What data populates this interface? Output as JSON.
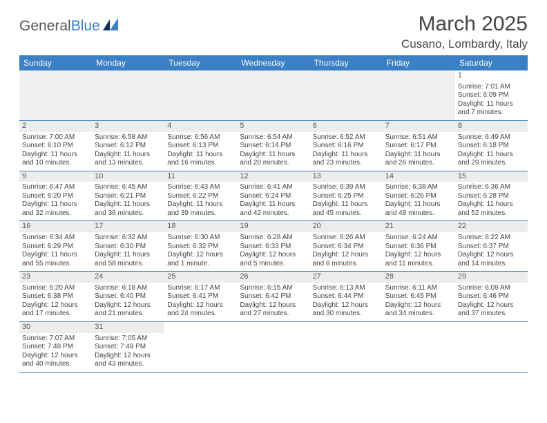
{
  "logo": {
    "word1": "General",
    "word2": "Blue"
  },
  "title": "March 2025",
  "location": "Cusano, Lombardy, Italy",
  "colors": {
    "header_bg": "#3b7fc4",
    "header_text": "#ffffff",
    "row_divider": "#3b7fc4",
    "daynum_bg": "#ededed",
    "empty_bg": "#f0f0f0",
    "page_bg": "#ffffff",
    "text": "#444444"
  },
  "day_headers": [
    "Sunday",
    "Monday",
    "Tuesday",
    "Wednesday",
    "Thursday",
    "Friday",
    "Saturday"
  ],
  "weeks": [
    [
      null,
      null,
      null,
      null,
      null,
      null,
      {
        "n": "1",
        "sr": "Sunrise: 7:01 AM",
        "ss": "Sunset: 6:09 PM",
        "d1": "Daylight: 11 hours",
        "d2": "and 7 minutes."
      }
    ],
    [
      {
        "n": "2",
        "sr": "Sunrise: 7:00 AM",
        "ss": "Sunset: 6:10 PM",
        "d1": "Daylight: 11 hours",
        "d2": "and 10 minutes."
      },
      {
        "n": "3",
        "sr": "Sunrise: 6:58 AM",
        "ss": "Sunset: 6:12 PM",
        "d1": "Daylight: 11 hours",
        "d2": "and 13 minutes."
      },
      {
        "n": "4",
        "sr": "Sunrise: 6:56 AM",
        "ss": "Sunset: 6:13 PM",
        "d1": "Daylight: 11 hours",
        "d2": "and 16 minutes."
      },
      {
        "n": "5",
        "sr": "Sunrise: 6:54 AM",
        "ss": "Sunset: 6:14 PM",
        "d1": "Daylight: 11 hours",
        "d2": "and 20 minutes."
      },
      {
        "n": "6",
        "sr": "Sunrise: 6:52 AM",
        "ss": "Sunset: 6:16 PM",
        "d1": "Daylight: 11 hours",
        "d2": "and 23 minutes."
      },
      {
        "n": "7",
        "sr": "Sunrise: 6:51 AM",
        "ss": "Sunset: 6:17 PM",
        "d1": "Daylight: 11 hours",
        "d2": "and 26 minutes."
      },
      {
        "n": "8",
        "sr": "Sunrise: 6:49 AM",
        "ss": "Sunset: 6:18 PM",
        "d1": "Daylight: 11 hours",
        "d2": "and 29 minutes."
      }
    ],
    [
      {
        "n": "9",
        "sr": "Sunrise: 6:47 AM",
        "ss": "Sunset: 6:20 PM",
        "d1": "Daylight: 11 hours",
        "d2": "and 32 minutes."
      },
      {
        "n": "10",
        "sr": "Sunrise: 6:45 AM",
        "ss": "Sunset: 6:21 PM",
        "d1": "Daylight: 11 hours",
        "d2": "and 36 minutes."
      },
      {
        "n": "11",
        "sr": "Sunrise: 6:43 AM",
        "ss": "Sunset: 6:22 PM",
        "d1": "Daylight: 11 hours",
        "d2": "and 39 minutes."
      },
      {
        "n": "12",
        "sr": "Sunrise: 6:41 AM",
        "ss": "Sunset: 6:24 PM",
        "d1": "Daylight: 11 hours",
        "d2": "and 42 minutes."
      },
      {
        "n": "13",
        "sr": "Sunrise: 6:39 AM",
        "ss": "Sunset: 6:25 PM",
        "d1": "Daylight: 11 hours",
        "d2": "and 45 minutes."
      },
      {
        "n": "14",
        "sr": "Sunrise: 6:38 AM",
        "ss": "Sunset: 6:26 PM",
        "d1": "Daylight: 11 hours",
        "d2": "and 48 minutes."
      },
      {
        "n": "15",
        "sr": "Sunrise: 6:36 AM",
        "ss": "Sunset: 6:28 PM",
        "d1": "Daylight: 11 hours",
        "d2": "and 52 minutes."
      }
    ],
    [
      {
        "n": "16",
        "sr": "Sunrise: 6:34 AM",
        "ss": "Sunset: 6:29 PM",
        "d1": "Daylight: 11 hours",
        "d2": "and 55 minutes."
      },
      {
        "n": "17",
        "sr": "Sunrise: 6:32 AM",
        "ss": "Sunset: 6:30 PM",
        "d1": "Daylight: 11 hours",
        "d2": "and 58 minutes."
      },
      {
        "n": "18",
        "sr": "Sunrise: 6:30 AM",
        "ss": "Sunset: 6:32 PM",
        "d1": "Daylight: 12 hours",
        "d2": "and 1 minute."
      },
      {
        "n": "19",
        "sr": "Sunrise: 6:28 AM",
        "ss": "Sunset: 6:33 PM",
        "d1": "Daylight: 12 hours",
        "d2": "and 5 minutes."
      },
      {
        "n": "20",
        "sr": "Sunrise: 6:26 AM",
        "ss": "Sunset: 6:34 PM",
        "d1": "Daylight: 12 hours",
        "d2": "and 8 minutes."
      },
      {
        "n": "21",
        "sr": "Sunrise: 6:24 AM",
        "ss": "Sunset: 6:36 PM",
        "d1": "Daylight: 12 hours",
        "d2": "and 11 minutes."
      },
      {
        "n": "22",
        "sr": "Sunrise: 6:22 AM",
        "ss": "Sunset: 6:37 PM",
        "d1": "Daylight: 12 hours",
        "d2": "and 14 minutes."
      }
    ],
    [
      {
        "n": "23",
        "sr": "Sunrise: 6:20 AM",
        "ss": "Sunset: 6:38 PM",
        "d1": "Daylight: 12 hours",
        "d2": "and 17 minutes."
      },
      {
        "n": "24",
        "sr": "Sunrise: 6:18 AM",
        "ss": "Sunset: 6:40 PM",
        "d1": "Daylight: 12 hours",
        "d2": "and 21 minutes."
      },
      {
        "n": "25",
        "sr": "Sunrise: 6:17 AM",
        "ss": "Sunset: 6:41 PM",
        "d1": "Daylight: 12 hours",
        "d2": "and 24 minutes."
      },
      {
        "n": "26",
        "sr": "Sunrise: 6:15 AM",
        "ss": "Sunset: 6:42 PM",
        "d1": "Daylight: 12 hours",
        "d2": "and 27 minutes."
      },
      {
        "n": "27",
        "sr": "Sunrise: 6:13 AM",
        "ss": "Sunset: 6:44 PM",
        "d1": "Daylight: 12 hours",
        "d2": "and 30 minutes."
      },
      {
        "n": "28",
        "sr": "Sunrise: 6:11 AM",
        "ss": "Sunset: 6:45 PM",
        "d1": "Daylight: 12 hours",
        "d2": "and 34 minutes."
      },
      {
        "n": "29",
        "sr": "Sunrise: 6:09 AM",
        "ss": "Sunset: 6:46 PM",
        "d1": "Daylight: 12 hours",
        "d2": "and 37 minutes."
      }
    ],
    [
      {
        "n": "30",
        "sr": "Sunrise: 7:07 AM",
        "ss": "Sunset: 7:48 PM",
        "d1": "Daylight: 12 hours",
        "d2": "and 40 minutes."
      },
      {
        "n": "31",
        "sr": "Sunrise: 7:05 AM",
        "ss": "Sunset: 7:49 PM",
        "d1": "Daylight: 12 hours",
        "d2": "and 43 minutes."
      },
      null,
      null,
      null,
      null,
      null
    ]
  ]
}
